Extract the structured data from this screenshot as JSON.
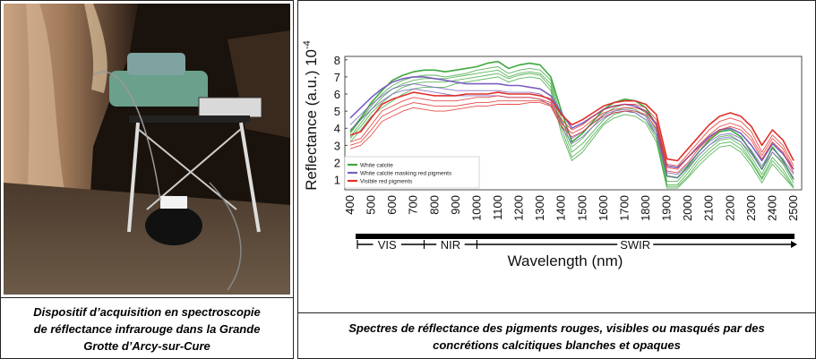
{
  "left": {
    "caption_lines": [
      "Dispositif d’acquisition en spectroscopie",
      "de réflectance infrarouge dans la Grande",
      "Grotte d’Arcy-sur-Cure"
    ]
  },
  "right": {
    "caption_lines": [
      "Spectres de réflectance des pigments rouges, visibles ou masqués par des",
      "concrétions calcitiques blanches et opaques"
    ]
  },
  "colors": {
    "white_calcite": "#3fa83f",
    "masking": "#7a5fc0",
    "red_pigments": "#e0302a",
    "frame": "#222222"
  },
  "chart_data": {
    "type": "line",
    "title": "",
    "xlabel": "Wavelength (nm)",
    "ylabel": "Reflectance (a.u.) 10",
    "ylabel_exponent": "-4",
    "xlim": [
      400,
      2500
    ],
    "ylim": [
      0.4,
      8.2
    ],
    "x_ticks": [
      400,
      500,
      600,
      700,
      800,
      900,
      1000,
      1100,
      1200,
      1300,
      1400,
      1500,
      1600,
      1700,
      1800,
      1900,
      2000,
      2100,
      2200,
      2300,
      2400,
      2500
    ],
    "y_ticks": [
      1,
      2,
      3,
      4,
      5,
      6,
      7,
      8
    ],
    "spectral_bands": [
      {
        "label": "VIS",
        "from": 400,
        "to": 750
      },
      {
        "label": "NIR",
        "from": 750,
        "to": 1000
      },
      {
        "label": "SWIR",
        "from": 1000,
        "to": 2500
      }
    ],
    "legend_position": "bottom-left",
    "x": [
      400,
      450,
      500,
      550,
      600,
      650,
      700,
      750,
      800,
      850,
      900,
      950,
      1000,
      1050,
      1100,
      1150,
      1200,
      1250,
      1300,
      1350,
      1400,
      1450,
      1500,
      1550,
      1600,
      1650,
      1700,
      1750,
      1800,
      1850,
      1900,
      1950,
      2000,
      2050,
      2100,
      2150,
      2200,
      2250,
      2300,
      2350,
      2400,
      2450,
      2500
    ],
    "series": [
      {
        "name": "White calcite",
        "color_key": "white_calcite",
        "instances": [
          [
            3.8,
            4.6,
            5.5,
            6.2,
            6.8,
            7.1,
            7.3,
            7.4,
            7.4,
            7.3,
            7.4,
            7.5,
            7.6,
            7.8,
            7.9,
            7.5,
            7.7,
            7.8,
            7.7,
            7.0,
            5.0,
            3.2,
            3.7,
            4.4,
            5.1,
            5.5,
            5.7,
            5.6,
            5.2,
            4.2,
            1.2,
            1.1,
            1.8,
            2.6,
            3.3,
            3.8,
            3.9,
            3.5,
            2.6,
            1.6,
            2.9,
            2.1,
            1.0
          ],
          [
            3.7,
            4.5,
            5.3,
            6.0,
            6.5,
            6.8,
            7.0,
            7.1,
            7.1,
            7.0,
            7.1,
            7.2,
            7.4,
            7.5,
            7.6,
            7.2,
            7.4,
            7.5,
            7.4,
            6.8,
            4.6,
            2.9,
            3.4,
            4.1,
            4.8,
            5.2,
            5.4,
            5.3,
            4.9,
            3.9,
            0.9,
            0.9,
            1.6,
            2.4,
            3.0,
            3.5,
            3.6,
            3.2,
            2.3,
            1.3,
            2.6,
            1.9,
            0.8
          ],
          [
            3.5,
            4.3,
            5.1,
            5.8,
            6.3,
            6.6,
            6.8,
            6.9,
            6.9,
            6.9,
            7.0,
            7.1,
            7.2,
            7.3,
            7.4,
            7.0,
            7.2,
            7.3,
            7.2,
            6.6,
            4.3,
            2.6,
            3.1,
            3.8,
            4.5,
            5.0,
            5.2,
            5.1,
            4.7,
            3.6,
            0.7,
            0.7,
            1.4,
            2.2,
            2.8,
            3.3,
            3.4,
            3.0,
            2.1,
            1.1,
            2.3,
            1.6,
            0.6
          ],
          [
            3.4,
            4.1,
            4.9,
            5.5,
            6.0,
            6.4,
            6.6,
            6.7,
            6.7,
            6.7,
            6.8,
            6.9,
            7.0,
            7.1,
            7.2,
            6.9,
            7.1,
            7.2,
            7.1,
            6.4,
            4.0,
            2.3,
            2.8,
            3.6,
            4.3,
            4.8,
            5.0,
            4.9,
            4.5,
            3.4,
            0.6,
            0.6,
            1.2,
            2.0,
            2.6,
            3.1,
            3.2,
            2.8,
            2.0,
            1.0,
            2.1,
            1.4,
            0.5
          ],
          [
            3.2,
            3.9,
            4.7,
            5.2,
            5.6,
            6.0,
            6.3,
            6.4,
            6.4,
            6.4,
            6.6,
            6.7,
            6.8,
            6.9,
            7.0,
            6.7,
            6.9,
            7.0,
            6.9,
            6.2,
            3.7,
            2.1,
            2.6,
            3.4,
            4.2,
            4.6,
            4.8,
            4.7,
            4.3,
            3.2,
            0.5,
            0.5,
            1.1,
            1.8,
            2.4,
            2.9,
            3.0,
            2.6,
            1.8,
            0.8,
            1.9,
            1.2,
            0.5
          ]
        ]
      },
      {
        "name": "White calcite masking red pigments",
        "color_key": "masking",
        "instances": [
          [
            4.6,
            5.2,
            5.8,
            6.3,
            6.7,
            6.9,
            7.0,
            7.0,
            6.9,
            6.8,
            6.7,
            6.6,
            6.6,
            6.6,
            6.6,
            6.5,
            6.5,
            6.4,
            6.3,
            5.9,
            4.9,
            4.0,
            4.3,
            4.7,
            5.1,
            5.3,
            5.4,
            5.3,
            5.0,
            4.2,
            1.8,
            1.7,
            2.3,
            2.9,
            3.5,
            3.9,
            4.0,
            3.7,
            3.0,
            2.1,
            3.1,
            2.5,
            1.6
          ],
          [
            4.2,
            4.8,
            5.4,
            5.9,
            6.3,
            6.5,
            6.6,
            6.5,
            6.4,
            6.3,
            6.2,
            6.2,
            6.2,
            6.2,
            6.2,
            6.1,
            6.1,
            6.1,
            6.0,
            5.6,
            4.4,
            3.4,
            3.8,
            4.3,
            4.8,
            5.0,
            5.1,
            5.0,
            4.7,
            3.8,
            1.4,
            1.3,
            1.9,
            2.6,
            3.2,
            3.6,
            3.7,
            3.4,
            2.7,
            1.8,
            2.8,
            2.2,
            1.3
          ],
          [
            3.9,
            4.5,
            5.1,
            5.6,
            6.0,
            6.2,
            6.3,
            6.2,
            6.1,
            6.0,
            5.9,
            5.9,
            5.9,
            5.9,
            5.9,
            5.8,
            5.8,
            5.8,
            5.7,
            5.3,
            4.1,
            3.1,
            3.5,
            4.1,
            4.6,
            4.9,
            5.0,
            4.9,
            4.5,
            3.6,
            1.2,
            1.1,
            1.7,
            2.4,
            3.0,
            3.4,
            3.5,
            3.2,
            2.5,
            1.6,
            2.6,
            2.0,
            1.1
          ]
        ]
      },
      {
        "name": "Visible red pigments",
        "color_key": "red_pigments",
        "instances": [
          [
            3.6,
            3.8,
            4.6,
            5.4,
            5.7,
            5.9,
            6.1,
            6.0,
            5.9,
            5.9,
            5.9,
            6.0,
            6.0,
            6.0,
            6.1,
            6.0,
            6.0,
            6.0,
            5.9,
            5.7,
            4.8,
            4.2,
            4.5,
            4.9,
            5.3,
            5.5,
            5.6,
            5.6,
            5.4,
            4.8,
            2.2,
            2.1,
            2.8,
            3.5,
            4.2,
            4.7,
            4.9,
            4.7,
            4.1,
            3.0,
            3.9,
            3.3,
            2.1
          ],
          [
            3.2,
            3.4,
            4.2,
            5.0,
            5.3,
            5.6,
            5.8,
            5.7,
            5.6,
            5.6,
            5.6,
            5.7,
            5.8,
            5.8,
            5.9,
            5.8,
            5.8,
            5.8,
            5.7,
            5.5,
            4.5,
            3.9,
            4.2,
            4.7,
            5.1,
            5.3,
            5.4,
            5.4,
            5.2,
            4.5,
            1.9,
            1.8,
            2.5,
            3.2,
            3.9,
            4.4,
            4.6,
            4.4,
            3.8,
            2.6,
            3.6,
            3.0,
            1.8
          ],
          [
            3.0,
            3.2,
            3.9,
            4.7,
            5.0,
            5.3,
            5.5,
            5.4,
            5.3,
            5.3,
            5.3,
            5.4,
            5.5,
            5.5,
            5.6,
            5.6,
            5.6,
            5.6,
            5.6,
            5.4,
            4.3,
            3.7,
            4.0,
            4.5,
            4.9,
            5.1,
            5.2,
            5.2,
            5.0,
            4.3,
            1.7,
            1.6,
            2.3,
            3.0,
            3.6,
            4.1,
            4.3,
            4.1,
            3.5,
            2.4,
            3.4,
            2.8,
            1.6
          ],
          [
            2.8,
            3.0,
            3.6,
            4.4,
            4.7,
            5.0,
            5.2,
            5.1,
            5.0,
            5.0,
            5.1,
            5.2,
            5.3,
            5.3,
            5.4,
            5.4,
            5.4,
            5.5,
            5.5,
            5.3,
            4.1,
            3.5,
            3.8,
            4.3,
            4.7,
            4.9,
            5.0,
            5.0,
            4.8,
            4.0,
            1.5,
            1.4,
            2.0,
            2.8,
            3.4,
            3.9,
            4.1,
            3.9,
            3.3,
            2.2,
            3.2,
            2.6,
            1.4
          ]
        ]
      }
    ]
  }
}
